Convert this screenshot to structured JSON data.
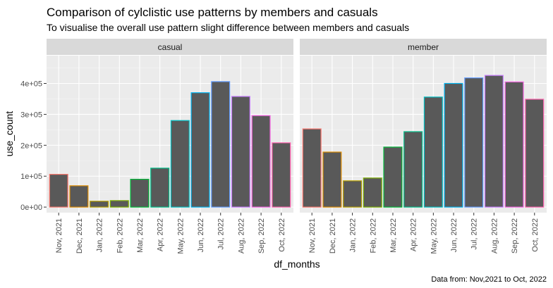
{
  "chart_data": {
    "type": "bar",
    "title": "Comparison of cylclistic use patterns by members and casuals",
    "subtitle": "To visualise the overall use pattern slight difference between members and casuals",
    "xlabel": "df_months",
    "ylabel": "use_count",
    "caption": "Data from: Nov,2021 to Oct, 2022",
    "ylim": [
      -18000,
      490000
    ],
    "y_ticks": [
      0,
      100000,
      200000,
      300000,
      400000
    ],
    "y_tick_labels": [
      "0e+00",
      "1e+05",
      "2e+05",
      "3e+05",
      "4e+05"
    ],
    "grid": true,
    "categories": [
      "Nov, 2021",
      "Dec, 2021",
      "Jan, 2022",
      "Feb, 2022",
      "Mar, 2022",
      "Apr, 2022",
      "May, 2022",
      "Jun, 2022",
      "Jul, 2022",
      "Aug, 2022",
      "Sep, 2022",
      "Oct, 2022"
    ],
    "border_colors": [
      "#F8766D",
      "#DE8C00",
      "#B79F00",
      "#7CAE00",
      "#00BA38",
      "#00C08B",
      "#00BFC4",
      "#00B4F0",
      "#619CFF",
      "#C77CFF",
      "#F564E3",
      "#FF64B0"
    ],
    "bar_fill": "#595959",
    "panel_bg": "#EBEBEB",
    "strip_bg": "#D9D9D9",
    "facets": [
      {
        "name": "casual",
        "values": [
          106000,
          69000,
          19000,
          21000,
          90000,
          126000,
          280000,
          370000,
          406000,
          358000,
          296000,
          208000
        ]
      },
      {
        "name": "member",
        "values": [
          253000,
          178000,
          85000,
          94000,
          194000,
          244000,
          356000,
          400000,
          418000,
          426000,
          405000,
          349000
        ]
      }
    ]
  }
}
